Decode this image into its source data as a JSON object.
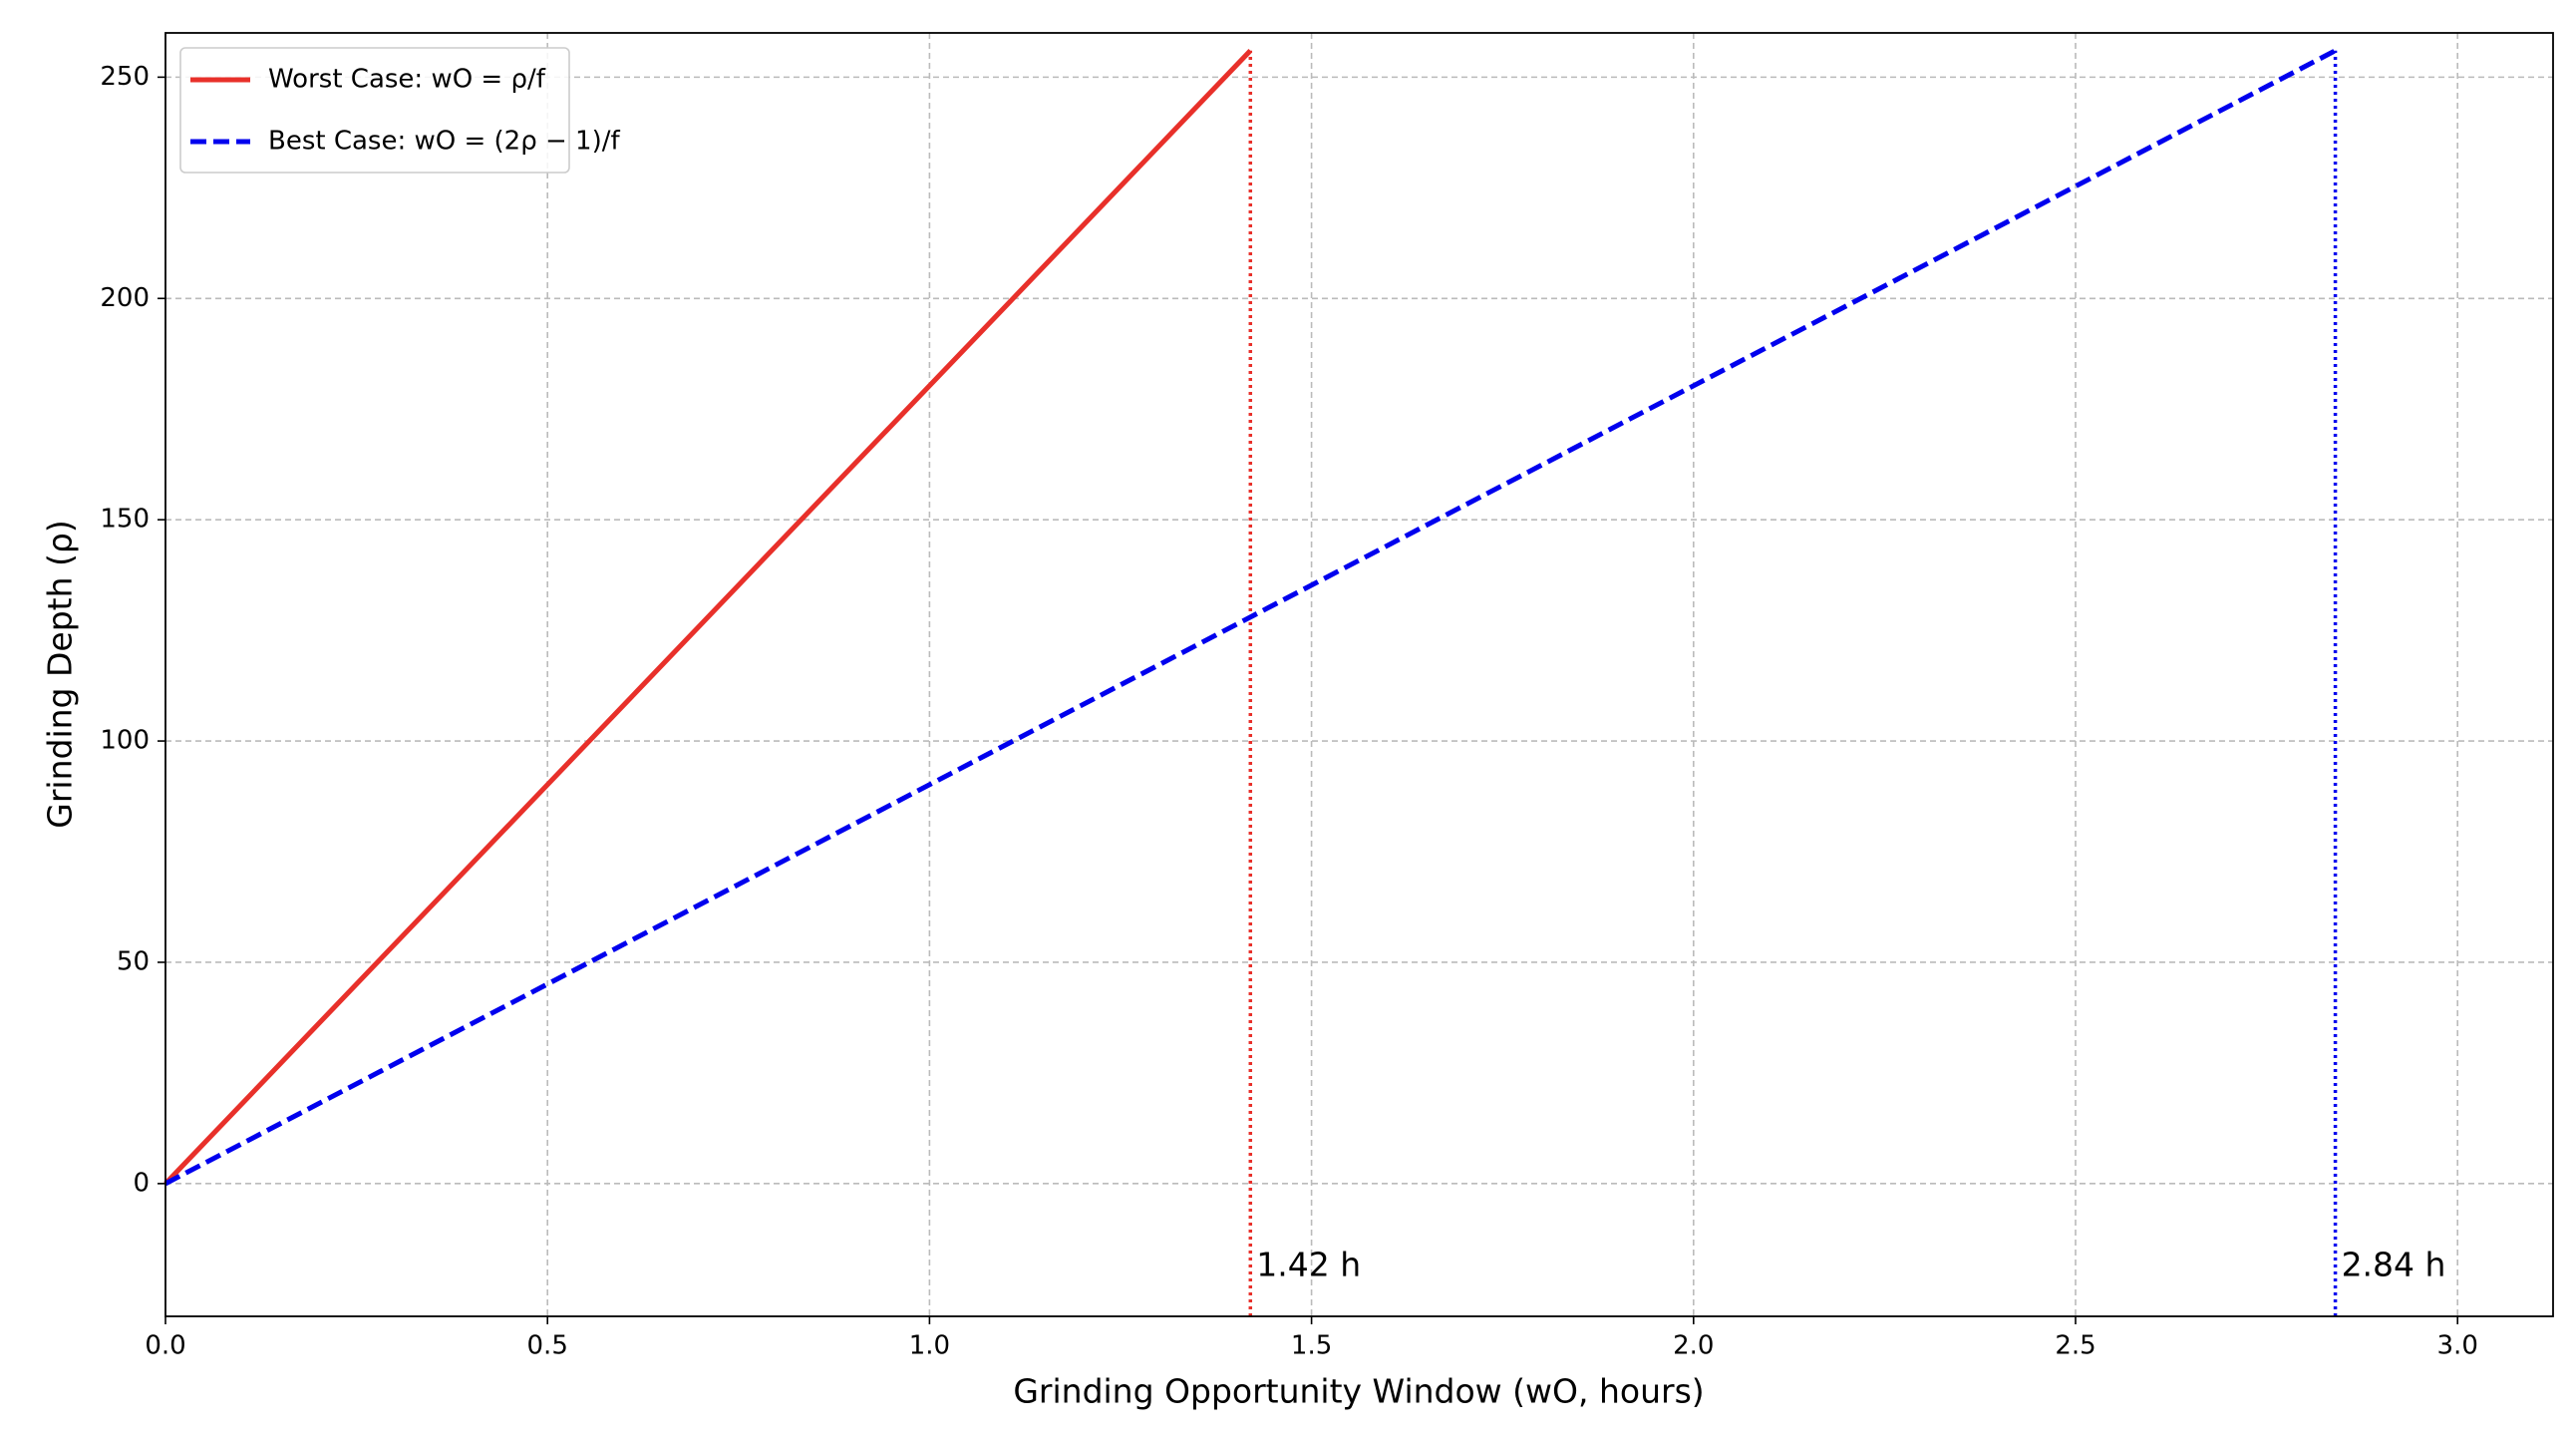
{
  "chart_data": {
    "type": "line",
    "xlabel": "Grinding Opportunity Window (wO, hours)",
    "ylabel": "Grinding Depth (ρ)",
    "series": [
      {
        "name": "Worst Case: wO = ρ/f",
        "color": "#e8302a",
        "style": "solid",
        "x": [
          0,
          1.42
        ],
        "values": [
          0,
          256
        ]
      },
      {
        "name": "Best Case: wO = (2ρ − 1)/f",
        "color": "#0000ee",
        "style": "dashed",
        "x": [
          0,
          2.84
        ],
        "values": [
          0,
          256
        ]
      }
    ],
    "vlines": [
      {
        "x": 1.42,
        "ymax": 256,
        "label": "1.42 h",
        "color": "#e8302a"
      },
      {
        "x": 2.84,
        "ymax": 256,
        "label": "2.84 h",
        "color": "#0000ee"
      }
    ],
    "xlim": [
      0,
      3.125
    ],
    "ylim": [
      -30,
      260
    ],
    "xticks": [
      {
        "value": 0,
        "label": "0.0"
      },
      0.5,
      {
        "value": 1,
        "label": "1.0"
      },
      1.5,
      {
        "value": 2,
        "label": "2.0"
      },
      2.5,
      {
        "value": 3,
        "label": "3.0"
      }
    ],
    "yticks": [
      0,
      50,
      100,
      150,
      200,
      250
    ],
    "grid": true,
    "legend": "upper left"
  }
}
